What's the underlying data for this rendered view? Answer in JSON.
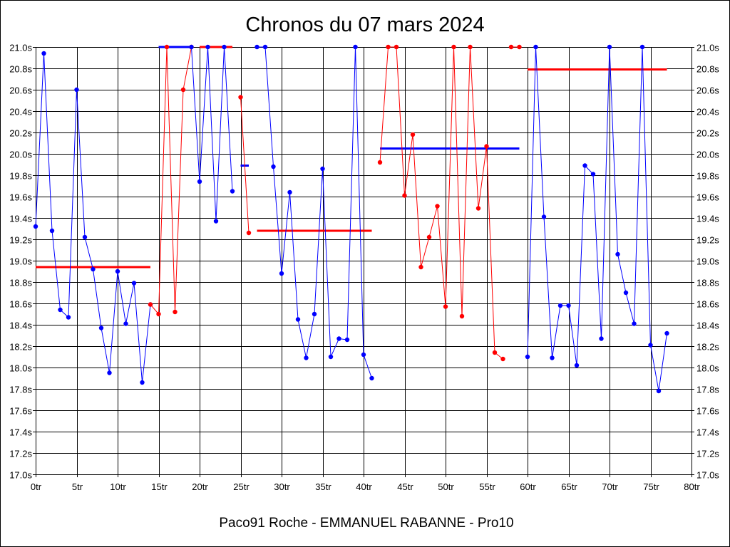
{
  "chart_data": {
    "type": "line",
    "title": "Chronos du 07 mars 2024",
    "footer": "Paco91 Roche - EMMANUEL RABANNE - Pro10",
    "xlabel": "",
    "ylabel": "",
    "xlim": [
      0,
      80
    ],
    "ylim": [
      17.0,
      21.0
    ],
    "x_ticks": [
      0,
      5,
      10,
      15,
      20,
      25,
      30,
      35,
      40,
      45,
      50,
      55,
      60,
      65,
      70,
      75,
      80
    ],
    "x_tick_labels": [
      "0tr",
      "5tr",
      "10tr",
      "15tr",
      "20tr",
      "25tr",
      "30tr",
      "35tr",
      "40tr",
      "45tr",
      "50tr",
      "55tr",
      "60tr",
      "65tr",
      "70tr",
      "75tr",
      "80tr"
    ],
    "y_ticks": [
      17.0,
      17.2,
      17.4,
      17.6,
      17.8,
      18.0,
      18.2,
      18.4,
      18.6,
      18.8,
      19.0,
      19.2,
      19.4,
      19.6,
      19.8,
      20.0,
      20.2,
      20.4,
      20.6,
      20.8,
      21.0
    ],
    "y_tick_labels": [
      "17.0s",
      "17.2s",
      "17.4s",
      "17.6s",
      "17.8s",
      "18.0s",
      "18.2s",
      "18.4s",
      "18.6s",
      "18.8s",
      "19.0s",
      "19.2s",
      "19.4s",
      "19.6s",
      "19.8s",
      "20.0s",
      "20.2s",
      "20.4s",
      "20.6s",
      "20.8s",
      "21.0s"
    ],
    "grid": true,
    "colors": {
      "blue": "#0000ff",
      "red": "#ff0000"
    },
    "series": [
      {
        "color": "blue",
        "points": [
          [
            0,
            19.32
          ],
          [
            1,
            20.94
          ],
          [
            2,
            19.28
          ],
          [
            3,
            18.54
          ],
          [
            4,
            18.47
          ],
          [
            5,
            20.6
          ],
          [
            6,
            19.22
          ],
          [
            7,
            18.92
          ],
          [
            8,
            18.37
          ],
          [
            9,
            17.95
          ],
          [
            10,
            18.9
          ],
          [
            11,
            18.41
          ],
          [
            12,
            18.79
          ],
          [
            13,
            17.86
          ],
          [
            14,
            18.59
          ]
        ]
      },
      {
        "color": "red",
        "points": [
          [
            14,
            18.59
          ],
          [
            15,
            18.5
          ],
          [
            16,
            21.0
          ],
          [
            17,
            18.52
          ],
          [
            18,
            20.6
          ],
          [
            19,
            21.0
          ]
        ]
      },
      {
        "color": "blue",
        "points": [
          [
            19,
            21.0
          ],
          [
            20,
            19.74
          ],
          [
            21,
            21.0
          ],
          [
            22,
            19.37
          ],
          [
            23,
            21.0
          ],
          [
            24,
            19.65
          ]
        ]
      },
      {
        "color": "red",
        "points": [
          [
            25,
            20.53
          ],
          [
            26,
            19.26
          ]
        ]
      },
      {
        "color": "blue",
        "points": [
          [
            27,
            21.0
          ],
          [
            28,
            21.0
          ],
          [
            29,
            19.88
          ],
          [
            30,
            18.88
          ],
          [
            31,
            19.64
          ],
          [
            32,
            18.45
          ],
          [
            33,
            18.09
          ],
          [
            34,
            18.5
          ],
          [
            35,
            19.86
          ],
          [
            36,
            18.1
          ],
          [
            37,
            18.27
          ],
          [
            38,
            18.26
          ],
          [
            39,
            21.0
          ],
          [
            40,
            18.12
          ],
          [
            41,
            17.9
          ]
        ]
      },
      {
        "color": "red",
        "points": [
          [
            42,
            19.92
          ],
          [
            43,
            21.0
          ],
          [
            44,
            21.0
          ],
          [
            45,
            19.61
          ],
          [
            46,
            20.18
          ],
          [
            47,
            18.94
          ],
          [
            48,
            19.22
          ],
          [
            49,
            19.51
          ],
          [
            50,
            18.57
          ],
          [
            51,
            21.0
          ],
          [
            52,
            18.48
          ],
          [
            53,
            21.0
          ],
          [
            54,
            19.49
          ],
          [
            55,
            20.07
          ],
          [
            56,
            18.14
          ],
          [
            57,
            18.08
          ]
        ]
      },
      {
        "color": "red",
        "points": [
          [
            58,
            21.0
          ],
          [
            59,
            21.0
          ]
        ]
      },
      {
        "color": "blue",
        "points": [
          [
            60,
            18.1
          ],
          [
            61,
            21.0
          ],
          [
            62,
            19.41
          ],
          [
            63,
            18.09
          ],
          [
            64,
            18.58
          ],
          [
            65,
            18.58
          ],
          [
            66,
            18.02
          ],
          [
            67,
            19.89
          ],
          [
            68,
            19.81
          ],
          [
            69,
            18.27
          ],
          [
            70,
            21.0
          ],
          [
            71,
            19.06
          ],
          [
            72,
            18.7
          ],
          [
            73,
            18.41
          ],
          [
            74,
            21.0
          ],
          [
            75,
            18.21
          ],
          [
            76,
            17.78
          ],
          [
            77,
            18.32
          ]
        ]
      }
    ],
    "averages": [
      {
        "color": "red",
        "x": [
          0,
          14
        ],
        "y": 18.94
      },
      {
        "color": "blue",
        "x": [
          15,
          19
        ],
        "y": 21.0
      },
      {
        "color": "red",
        "x": [
          20,
          24
        ],
        "y": 21.0
      },
      {
        "color": "blue",
        "x": [
          25,
          26
        ],
        "y": 19.89
      },
      {
        "color": "red",
        "x": [
          27,
          41
        ],
        "y": 19.28
      },
      {
        "color": "blue",
        "x": [
          42,
          59
        ],
        "y": 20.05
      },
      {
        "color": "red",
        "x": [
          60,
          77
        ],
        "y": 20.79
      }
    ]
  }
}
